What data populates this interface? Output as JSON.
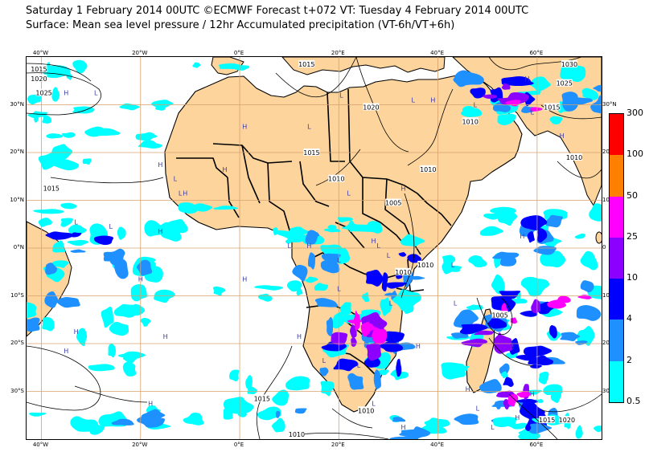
{
  "title": {
    "line1": "Saturday 1 February 2014 00UTC ©ECMWF Forecast t+072 VT: Tuesday 4 February 2014 00UTC",
    "line2": "Surface: Mean sea level pressure / 12hr Accumulated precipitation (VT-6h/VT+6h)"
  },
  "axes": {
    "lon_range": [
      -43,
      73
    ],
    "lat_range": [
      40,
      -40
    ],
    "lon_ticks": [
      {
        "v": -40,
        "label": "40°W"
      },
      {
        "v": -20,
        "label": "20°W"
      },
      {
        "v": 0,
        "label": "0°E"
      },
      {
        "v": 20,
        "label": "20°E"
      },
      {
        "v": 40,
        "label": "40°E"
      },
      {
        "v": 60,
        "label": "60°E"
      }
    ],
    "lat_ticks": [
      {
        "v": 30,
        "left": "30°N",
        "right": "30°N"
      },
      {
        "v": 20,
        "left": "20°N",
        "right": "20"
      },
      {
        "v": 10,
        "left": "10°N",
        "right": "10"
      },
      {
        "v": 0,
        "left": "0°N",
        "right": "0"
      },
      {
        "v": -10,
        "left": "10°S",
        "right": "10"
      },
      {
        "v": -20,
        "left": "20°S",
        "right": "20"
      },
      {
        "v": -30,
        "left": "30°S",
        "right": "30"
      }
    ],
    "gridline_color": "#d9a06c"
  },
  "colors": {
    "land": "#fcd49c",
    "ocean": "#ffffff",
    "coast": "#000000",
    "isobar": "#000000"
  },
  "legend": {
    "levels": [
      {
        "label": "0.5",
        "color": "#00ffff"
      },
      {
        "label": "2",
        "color": "#1e90ff"
      },
      {
        "label": "4",
        "color": "#0000ff"
      },
      {
        "label": "10",
        "color": "#8b00ff"
      },
      {
        "label": "25",
        "color": "#ff00ff"
      },
      {
        "label": "50",
        "color": "#ff7f00"
      },
      {
        "label": "100",
        "color": "#ff0000"
      },
      {
        "label": "300",
        "color": "#ff0000"
      }
    ]
  },
  "pressure_labels": [
    {
      "text": "1015",
      "lon": -40.5,
      "lat": 37.5
    },
    {
      "text": "1020",
      "lon": -40.5,
      "lat": 35.5
    },
    {
      "text": "1025",
      "lon": -39.5,
      "lat": 32.5
    },
    {
      "text": "1015",
      "lon": 13.5,
      "lat": 38.5
    },
    {
      "text": "1020",
      "lon": 26.5,
      "lat": 29.5
    },
    {
      "text": "1030",
      "lon": 66.5,
      "lat": 38.5
    },
    {
      "text": "1025",
      "lon": 65.5,
      "lat": 34.5
    },
    {
      "text": "1015",
      "lon": 63,
      "lat": 29.5
    },
    {
      "text": "1010",
      "lon": 46.5,
      "lat": 26.5
    },
    {
      "text": "1015",
      "lon": 14.5,
      "lat": 20
    },
    {
      "text": "1010",
      "lon": 19.5,
      "lat": 14.5
    },
    {
      "text": "1010",
      "lon": 38,
      "lat": 16.5
    },
    {
      "text": "1010",
      "lon": 67.5,
      "lat": 19
    },
    {
      "text": "1005",
      "lon": 31,
      "lat": 9.5
    },
    {
      "text": "1015",
      "lon": -38,
      "lat": 12.5
    },
    {
      "text": "1010",
      "lon": 37.5,
      "lat": -3.5
    },
    {
      "text": "1010",
      "lon": 33,
      "lat": -5
    },
    {
      "text": "1005",
      "lon": 52.5,
      "lat": -14
    },
    {
      "text": "1015",
      "lon": 4.5,
      "lat": -31.5
    },
    {
      "text": "1010",
      "lon": 25.5,
      "lat": -34
    },
    {
      "text": "1010",
      "lon": 11.5,
      "lat": -39
    },
    {
      "text": "1015",
      "lon": 62,
      "lat": -36
    },
    {
      "text": "1020",
      "lon": 66,
      "lat": -36
    }
  ],
  "centers": [
    {
      "t": "H",
      "lon": -35,
      "lat": 32
    },
    {
      "t": "L",
      "lon": -29,
      "lat": 32
    },
    {
      "t": "H",
      "lon": 1,
      "lat": 25
    },
    {
      "t": "L",
      "lon": 14,
      "lat": 25
    },
    {
      "t": "L",
      "lon": 20.5,
      "lat": 31.5
    },
    {
      "t": "L",
      "lon": 35,
      "lat": 30.5
    },
    {
      "t": "H",
      "lon": 39,
      "lat": 30.5
    },
    {
      "t": "L",
      "lon": 47.5,
      "lat": 29.5
    },
    {
      "t": "H",
      "lon": 58,
      "lat": 35
    },
    {
      "t": "L",
      "lon": 59,
      "lat": 28
    },
    {
      "t": "H",
      "lon": 65,
      "lat": 23
    },
    {
      "t": "H",
      "lon": -16,
      "lat": 17
    },
    {
      "t": "L",
      "lon": -13,
      "lat": 14
    },
    {
      "t": "H",
      "lon": -3,
      "lat": 16
    },
    {
      "t": "L",
      "lon": -12,
      "lat": 11
    },
    {
      "t": "H",
      "lon": -11,
      "lat": 11
    },
    {
      "t": "L",
      "lon": 22,
      "lat": 11
    },
    {
      "t": "L",
      "lon": -33,
      "lat": 5
    },
    {
      "t": "L",
      "lon": -26,
      "lat": 4
    },
    {
      "t": "H",
      "lon": -16,
      "lat": 3
    },
    {
      "t": "H",
      "lon": 33,
      "lat": 12
    },
    {
      "t": "H",
      "lon": 27,
      "lat": 1
    },
    {
      "t": "L",
      "lon": 10,
      "lat": 0
    },
    {
      "t": "H",
      "lon": 14,
      "lat": 0
    },
    {
      "t": "L",
      "lon": 20,
      "lat": -3
    },
    {
      "t": "L",
      "lon": 20,
      "lat": -9
    },
    {
      "t": "L",
      "lon": 28,
      "lat": 0
    },
    {
      "t": "L",
      "lon": 30,
      "lat": -2
    },
    {
      "t": "H",
      "lon": -20,
      "lat": -7
    },
    {
      "t": "H",
      "lon": 1,
      "lat": -7
    },
    {
      "t": "L",
      "lon": 43,
      "lat": -4
    },
    {
      "t": "H",
      "lon": 57,
      "lat": 2
    },
    {
      "t": "L",
      "lon": 43.5,
      "lat": -12
    },
    {
      "t": "L",
      "lon": 30.5,
      "lat": -12
    },
    {
      "t": "L",
      "lon": 28,
      "lat": -16
    },
    {
      "t": "H",
      "lon": 12,
      "lat": -19
    },
    {
      "t": "H",
      "lon": 36,
      "lat": -21
    },
    {
      "t": "L",
      "lon": 55,
      "lat": -21
    },
    {
      "t": "H",
      "lon": -33,
      "lat": -18
    },
    {
      "t": "H",
      "lon": -35,
      "lat": -22
    },
    {
      "t": "H",
      "lon": -18,
      "lat": -33
    },
    {
      "t": "H",
      "lon": -15,
      "lat": -19
    },
    {
      "t": "L",
      "lon": 17,
      "lat": -24
    },
    {
      "t": "L",
      "lon": 24,
      "lat": -25
    },
    {
      "t": "H",
      "lon": 46,
      "lat": -30
    },
    {
      "t": "H",
      "lon": 59,
      "lat": -31
    },
    {
      "t": "L",
      "lon": 27,
      "lat": -33
    },
    {
      "t": "L",
      "lon": 48,
      "lat": -34
    },
    {
      "t": "L",
      "lon": 51,
      "lat": -38
    },
    {
      "t": "H",
      "lon": 56,
      "lat": -36
    },
    {
      "t": "H",
      "lon": 33,
      "lat": -38
    }
  ]
}
